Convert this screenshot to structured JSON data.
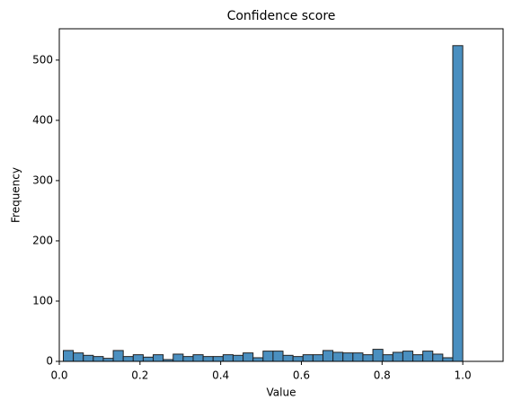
{
  "chart_data": {
    "type": "histogram",
    "title": "Confidence score",
    "x_label": "Value",
    "y_label": "Frequency",
    "bins": [
      0.01,
      0.03475,
      0.0595,
      0.08425,
      0.109,
      0.13375,
      0.1585,
      0.18325,
      0.208,
      0.23275,
      0.2575,
      0.28225,
      0.307,
      0.33175,
      0.3565,
      0.38125,
      0.406,
      0.43075,
      0.4555,
      0.48025,
      0.505,
      0.52975,
      0.5545,
      0.57925,
      0.604,
      0.62875,
      0.6535,
      0.67825,
      0.703,
      0.72775,
      0.7525,
      0.77725,
      0.802,
      0.82675,
      0.8515,
      0.87625,
      0.901,
      0.92575,
      0.9505,
      0.97525,
      1.0
    ],
    "values": [
      18,
      14,
      10,
      8,
      5,
      18,
      8,
      11,
      7,
      11,
      3,
      12,
      8,
      11,
      8,
      8,
      11,
      10,
      14,
      6,
      17,
      17,
      10,
      8,
      11,
      11,
      18,
      15,
      14,
      14,
      11,
      20,
      11,
      15,
      17,
      11,
      17,
      12,
      6,
      524
    ],
    "color": "#4a8fc0",
    "xlim": [
      0,
      1.1
    ],
    "ylim": [
      0,
      552
    ],
    "xticks": [
      {
        "value": 0,
        "label": "0.0"
      },
      {
        "value": 0.2,
        "label": "0.2"
      },
      {
        "value": 0.4,
        "label": "0.4"
      },
      {
        "value": 0.6,
        "label": "0.6"
      },
      {
        "value": 0.8,
        "label": "0.8"
      },
      {
        "value": 1,
        "label": "1.0"
      }
    ],
    "yticks": [
      0,
      100,
      200,
      300,
      400,
      500
    ]
  }
}
